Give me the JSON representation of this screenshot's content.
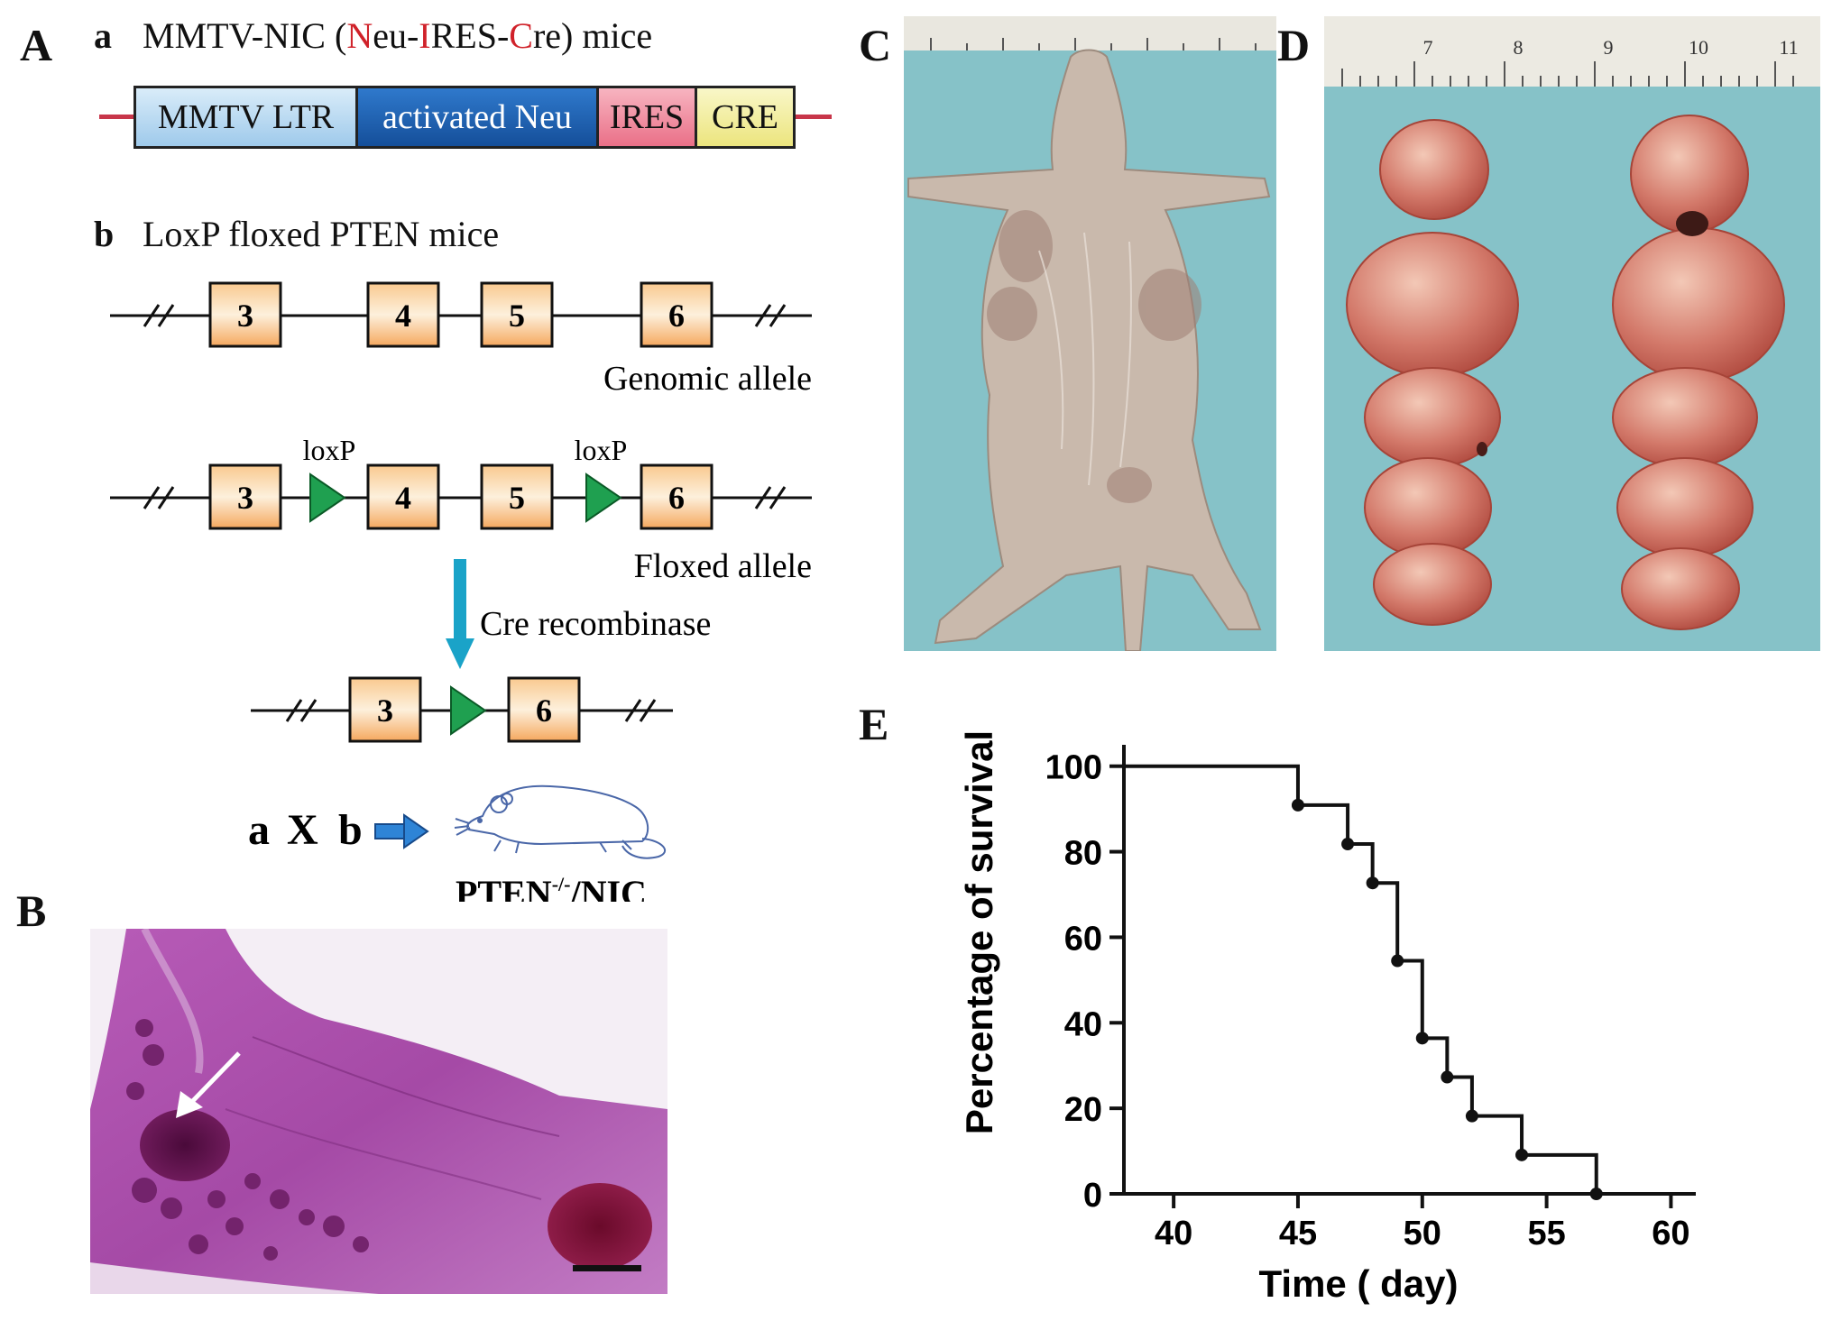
{
  "panels": {
    "A": "A",
    "B": "B",
    "C": "C",
    "D": "D",
    "E": "E"
  },
  "construct_a": {
    "label": "a",
    "title_prefix": "MMTV-NIC (",
    "title_n": "N",
    "title_eu": "eu-",
    "title_i": "I",
    "title_res": "RES-",
    "title_c": "C",
    "title_suffix": "re) mice",
    "segments": [
      "MMTV LTR",
      "activated Neu",
      "IRES",
      "CRE"
    ],
    "colors": {
      "ltr": "#b7d9f1",
      "neu": "#1d5fb0",
      "ires": "#f08a9c",
      "cre": "#f4f0a0",
      "line": "#c8364a"
    }
  },
  "construct_b": {
    "label": "b",
    "title": "LoxP floxed PTEN mice",
    "genomic_exons": [
      "3",
      "4",
      "5",
      "6"
    ],
    "genomic_caption": "Genomic allele",
    "floxed_exons": [
      "3",
      "4",
      "5",
      "6"
    ],
    "loxp_label_1": "loxP",
    "loxp_label_2": "loxP",
    "floxed_caption": "Floxed allele",
    "cre_label": "Cre recombinase",
    "recombined_exons": [
      "3",
      "6"
    ],
    "exon_color": "#f6b97a",
    "loxp_color": "#1fa050",
    "arrow_color": "#1aa3c8"
  },
  "cross": {
    "a": "a",
    "x": "X",
    "b": "b",
    "result_label": "PTEN",
    "result_sup": "-/-",
    "result_suffix": "/NIC"
  },
  "ruler_numbers": [
    "7",
    "8",
    "9",
    "10",
    "11"
  ],
  "chart_data": {
    "type": "line",
    "subtype": "kaplan-meier step",
    "xlabel": "Time ( day)",
    "ylabel": "Percentage of survival",
    "xlim": [
      38,
      61
    ],
    "ylim": [
      0,
      105
    ],
    "xticks": [
      40,
      45,
      50,
      55,
      60
    ],
    "yticks": [
      0,
      20,
      40,
      60,
      80,
      100
    ],
    "x_tick_labels": [
      "40",
      "45",
      "50",
      "55",
      "60"
    ],
    "y_tick_labels": [
      "0",
      "20",
      "40",
      "60",
      "80",
      "100"
    ],
    "series": [
      {
        "x": [
          38,
          45,
          47,
          48,
          49,
          50,
          51,
          52,
          54,
          57
        ],
        "y": [
          100,
          90.9,
          81.8,
          72.7,
          54.5,
          36.4,
          27.3,
          18.2,
          9.1,
          0
        ],
        "events": [
          {
            "x": 45,
            "y": 90.9
          },
          {
            "x": 47,
            "y": 81.8
          },
          {
            "x": 48,
            "y": 72.7
          },
          {
            "x": 49,
            "y": 54.5
          },
          {
            "x": 50,
            "y": 36.4
          },
          {
            "x": 51,
            "y": 27.3
          },
          {
            "x": 52,
            "y": 18.2
          },
          {
            "x": 54,
            "y": 9.1
          },
          {
            "x": 57,
            "y": 0
          }
        ]
      }
    ],
    "grid": false,
    "legend": "none"
  }
}
